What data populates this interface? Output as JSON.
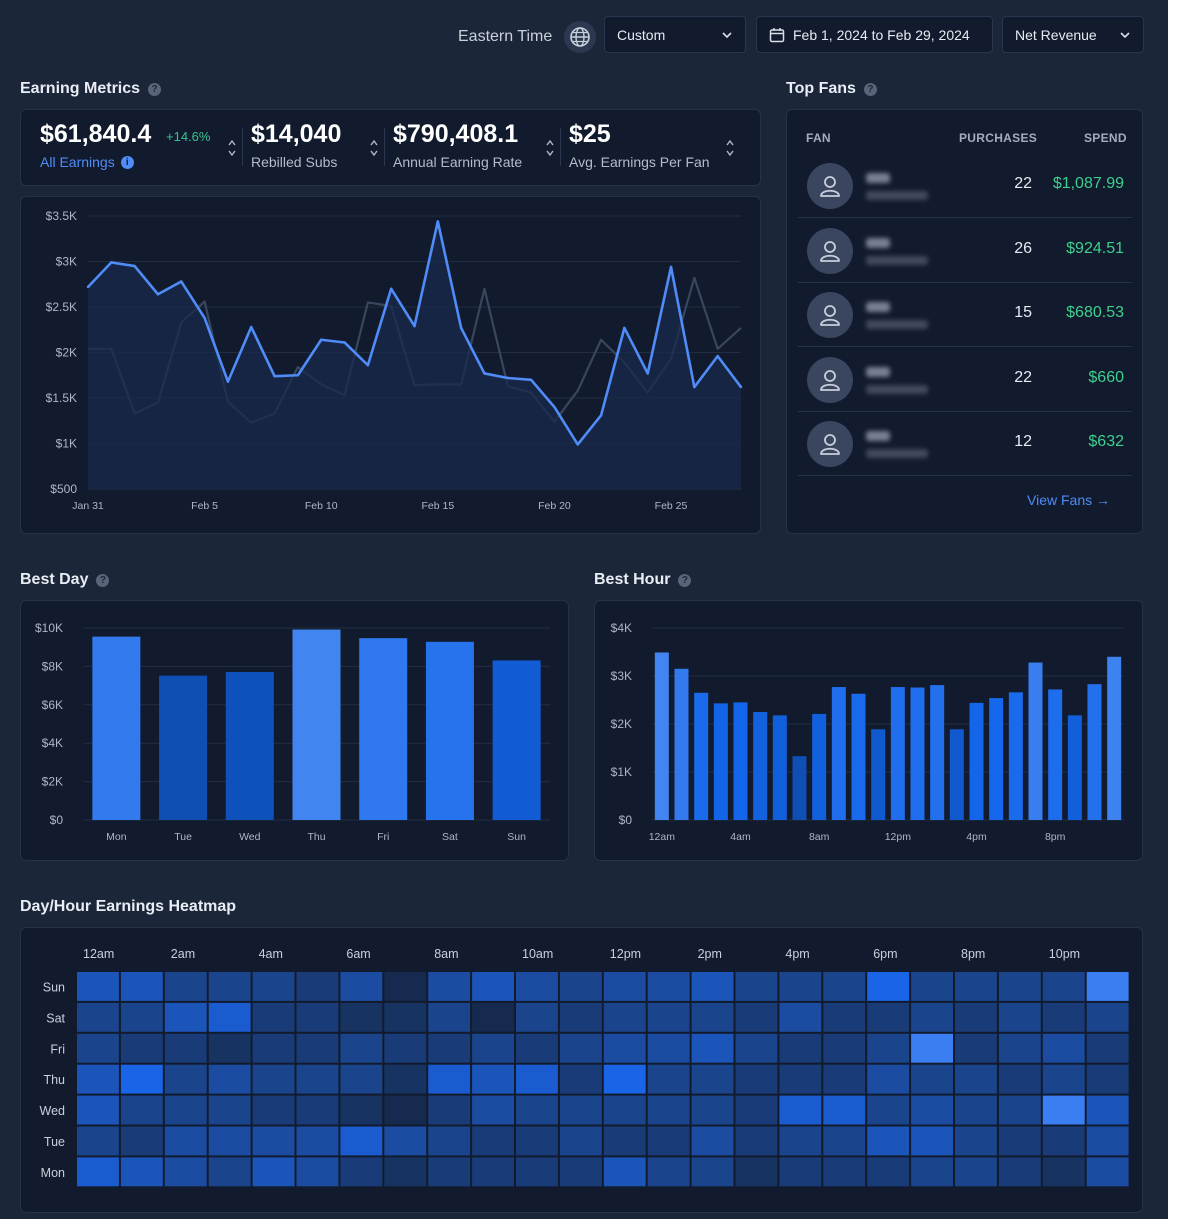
{
  "topbar": {
    "timezone_label": "Eastern Time",
    "range_select": "Custom",
    "date_range": "Feb 1, 2024 to Feb 29, 2024",
    "metric_select": "Net Revenue"
  },
  "earning_metrics": {
    "title": "Earning Metrics",
    "all_earnings": {
      "value": "$61,840.4",
      "delta": "+14.6%",
      "label": "All Earnings"
    },
    "rebilled_subs": {
      "value": "$14,040",
      "label": "Rebilled Subs"
    },
    "annual_rate": {
      "value": "$790,408.1",
      "label": "Annual Earning Rate"
    },
    "avg_per_fan": {
      "value": "$25",
      "label": "Avg. Earnings Per Fan"
    }
  },
  "top_fans": {
    "title": "Top Fans",
    "col_fan": "FAN",
    "col_purchases": "PURCHASES",
    "col_spend": "SPEND",
    "rows": [
      {
        "purchases": "22",
        "spend": "$1,087.99"
      },
      {
        "purchases": "26",
        "spend": "$924.51"
      },
      {
        "purchases": "15",
        "spend": "$680.53"
      },
      {
        "purchases": "22",
        "spend": "$660"
      },
      {
        "purchases": "12",
        "spend": "$632"
      }
    ],
    "view_link": "View Fans →"
  },
  "best_day": {
    "title": "Best Day"
  },
  "best_hour": {
    "title": "Best Hour"
  },
  "heatmap": {
    "title": "Day/Hour Earnings Heatmap"
  },
  "colors": {
    "accent_blue": "#4f8cf7",
    "positive_green": "#3ecf8e",
    "background": "#1b2638",
    "card": "#121b2d"
  },
  "chart_data": [
    {
      "id": "earnings_line",
      "type": "line",
      "x_tick_labels": [
        "Jan 31",
        "Feb 5",
        "Feb 10",
        "Feb 15",
        "Feb 20",
        "Feb 25"
      ],
      "y_tick_labels": [
        "$3.5K",
        "$3K",
        "$2.5K",
        "$2K",
        "$1.5K",
        "$1K",
        "$500"
      ],
      "ylim": [
        500,
        3500
      ],
      "grid": true,
      "series": [
        {
          "values": [
            2720,
            2990,
            2950,
            2640,
            2780,
            2380,
            1680,
            2280,
            1740,
            1750,
            2140,
            2110,
            1860,
            2700,
            2290,
            3440,
            2270,
            1770,
            1720,
            1700,
            1400,
            990,
            1310,
            2270,
            1770,
            2940,
            1620,
            1960,
            1620
          ]
        },
        {
          "values": [
            2040,
            2040,
            1330,
            1450,
            2330,
            2560,
            1460,
            1230,
            1330,
            1840,
            1650,
            1530,
            2550,
            2510,
            1640,
            1650,
            1650,
            2700,
            1630,
            1560,
            1240,
            1580,
            2140,
            1890,
            1560,
            1930,
            2820,
            2040,
            2270
          ]
        }
      ]
    },
    {
      "id": "best_day",
      "type": "bar",
      "categories": [
        "Mon",
        "Tue",
        "Wed",
        "Thu",
        "Fri",
        "Sat",
        "Sun"
      ],
      "values": [
        9550,
        7520,
        7710,
        9920,
        9470,
        9280,
        8310
      ],
      "y_tick_labels": [
        "$10K",
        "$8K",
        "$6K",
        "$4K",
        "$2K",
        "$0"
      ],
      "ylim": [
        0,
        10000
      ],
      "grid": true
    },
    {
      "id": "best_hour",
      "type": "bar",
      "categories": [
        "12am",
        "1am",
        "2am",
        "3am",
        "4am",
        "5am",
        "6am",
        "7am",
        "8am",
        "9am",
        "10am",
        "11am",
        "12pm",
        "1pm",
        "2pm",
        "3pm",
        "4pm",
        "5pm",
        "6pm",
        "7pm",
        "8pm",
        "9pm",
        "10pm",
        "11pm"
      ],
      "x_tick_labels": [
        "12am",
        "4am",
        "8am",
        "12pm",
        "4pm",
        "8pm"
      ],
      "values": [
        3490,
        3150,
        2650,
        2430,
        2450,
        2250,
        2180,
        1330,
        2210,
        2770,
        2630,
        1890,
        2770,
        2760,
        2810,
        1890,
        2440,
        2540,
        2660,
        3280,
        2720,
        2180,
        2830,
        3400
      ],
      "y_tick_labels": [
        "$4K",
        "$3K",
        "$2K",
        "$1K",
        "$0"
      ],
      "ylim": [
        0,
        4000
      ],
      "grid": true
    },
    {
      "id": "day_hour_heatmap",
      "type": "heatmap",
      "rows": [
        "Sun",
        "Sat",
        "Fri",
        "Thu",
        "Wed",
        "Tue",
        "Mon"
      ],
      "x_tick_labels": [
        "12am",
        "2am",
        "4am",
        "6am",
        "8am",
        "10am",
        "12pm",
        "2pm",
        "4pm",
        "6pm",
        "8pm",
        "10pm"
      ],
      "values": [
        [
          6,
          6,
          4,
          4,
          4,
          3,
          5,
          1,
          5,
          6,
          5,
          4,
          5,
          5,
          6,
          4,
          4,
          4,
          8,
          4,
          4,
          4,
          4,
          10
        ],
        [
          4,
          4,
          6,
          7,
          3,
          3,
          2,
          2,
          4,
          1,
          4,
          3,
          4,
          4,
          4,
          3,
          5,
          3,
          3,
          4,
          3,
          4,
          3,
          4
        ],
        [
          4,
          3,
          3,
          2,
          3,
          3,
          4,
          3,
          3,
          4,
          3,
          4,
          5,
          5,
          6,
          4,
          3,
          3,
          4,
          10,
          3,
          4,
          5,
          3
        ],
        [
          6,
          8,
          4,
          5,
          4,
          4,
          4,
          2,
          7,
          6,
          7,
          3,
          8,
          4,
          4,
          3,
          3,
          3,
          5,
          4,
          4,
          3,
          4,
          3
        ],
        [
          6,
          4,
          4,
          4,
          3,
          3,
          2,
          1,
          3,
          5,
          4,
          4,
          4,
          4,
          4,
          3,
          7,
          7,
          4,
          5,
          4,
          4,
          10,
          6
        ],
        [
          4,
          3,
          5,
          5,
          5,
          5,
          7,
          5,
          4,
          3,
          3,
          4,
          3,
          3,
          5,
          3,
          4,
          4,
          6,
          6,
          4,
          3,
          3,
          5
        ],
        [
          7,
          6,
          5,
          4,
          6,
          5,
          3,
          2,
          3,
          3,
          3,
          3,
          6,
          4,
          4,
          2,
          3,
          3,
          3,
          4,
          4,
          3,
          2,
          5
        ]
      ]
    }
  ]
}
